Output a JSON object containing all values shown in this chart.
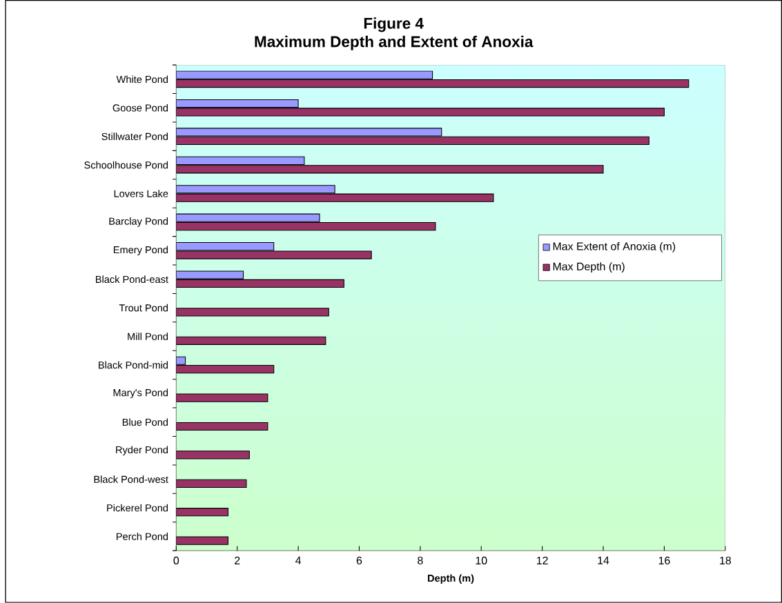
{
  "chart_data": {
    "type": "bar",
    "orientation": "horizontal",
    "title": "Figure 4\nMaximum Depth and Extent of Anoxia",
    "xlabel": "Depth (m)",
    "categories": [
      "White Pond",
      "Goose Pond",
      "Stillwater Pond",
      "Schoolhouse Pond",
      "Lovers Lake",
      "Barclay Pond",
      "Emery Pond",
      "Black Pond-east",
      "Trout Pond",
      "Mill Pond",
      "Black Pond-mid",
      "Mary's Pond",
      "Blue Pond",
      "Ryder Pond",
      "Black Pond-west",
      "Pickerel Pond",
      "Perch Pond"
    ],
    "series": [
      {
        "name": "Max Extent of Anoxia (m)",
        "color": "#9999ff",
        "values": [
          8.4,
          4.0,
          8.7,
          4.2,
          5.2,
          4.7,
          3.2,
          2.2,
          null,
          null,
          0.3,
          null,
          null,
          null,
          null,
          null,
          null
        ]
      },
      {
        "name": "Max Depth (m)",
        "color": "#993366",
        "values": [
          16.8,
          16.0,
          15.5,
          14.0,
          10.4,
          8.5,
          6.4,
          5.5,
          5.0,
          4.9,
          3.2,
          3.0,
          3.0,
          2.4,
          2.3,
          1.7,
          1.7
        ]
      }
    ],
    "xlim": [
      0,
      18
    ],
    "xticks": [
      0,
      2,
      4,
      6,
      8,
      10,
      12,
      14,
      16,
      18
    ],
    "grid": false,
    "legend": "right"
  }
}
